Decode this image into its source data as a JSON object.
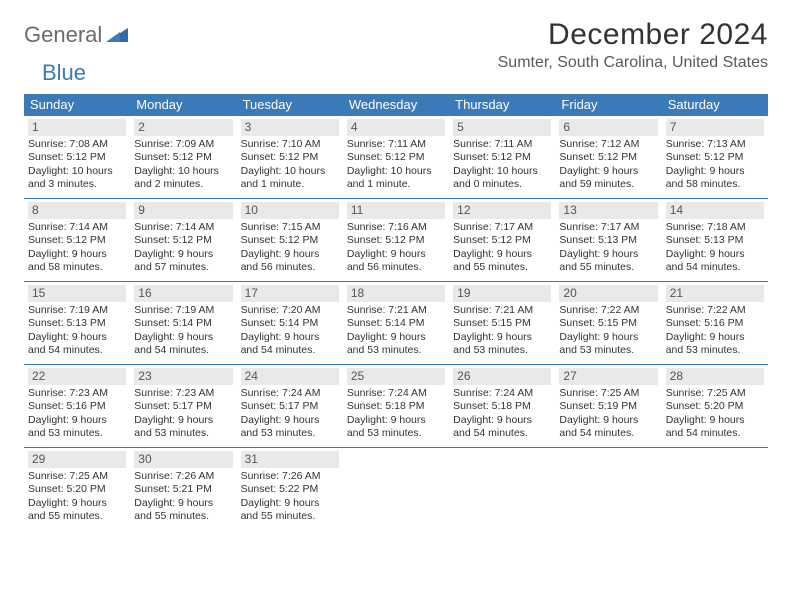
{
  "logo": {
    "text1": "General",
    "text2": "Blue"
  },
  "title": "December 2024",
  "location": "Sumter, South Carolina, United States",
  "colors": {
    "header_bg": "#3a7ab8",
    "daynum_bg": "#e9e9e9",
    "text": "#333333",
    "logo_gray": "#6b6b6b",
    "logo_blue": "#3a7ab8"
  },
  "dow": [
    "Sunday",
    "Monday",
    "Tuesday",
    "Wednesday",
    "Thursday",
    "Friday",
    "Saturday"
  ],
  "weeks": [
    [
      {
        "n": "1",
        "sr": "Sunrise: 7:08 AM",
        "ss": "Sunset: 5:12 PM",
        "d1": "Daylight: 10 hours",
        "d2": "and 3 minutes."
      },
      {
        "n": "2",
        "sr": "Sunrise: 7:09 AM",
        "ss": "Sunset: 5:12 PM",
        "d1": "Daylight: 10 hours",
        "d2": "and 2 minutes."
      },
      {
        "n": "3",
        "sr": "Sunrise: 7:10 AM",
        "ss": "Sunset: 5:12 PM",
        "d1": "Daylight: 10 hours",
        "d2": "and 1 minute."
      },
      {
        "n": "4",
        "sr": "Sunrise: 7:11 AM",
        "ss": "Sunset: 5:12 PM",
        "d1": "Daylight: 10 hours",
        "d2": "and 1 minute."
      },
      {
        "n": "5",
        "sr": "Sunrise: 7:11 AM",
        "ss": "Sunset: 5:12 PM",
        "d1": "Daylight: 10 hours",
        "d2": "and 0 minutes."
      },
      {
        "n": "6",
        "sr": "Sunrise: 7:12 AM",
        "ss": "Sunset: 5:12 PM",
        "d1": "Daylight: 9 hours",
        "d2": "and 59 minutes."
      },
      {
        "n": "7",
        "sr": "Sunrise: 7:13 AM",
        "ss": "Sunset: 5:12 PM",
        "d1": "Daylight: 9 hours",
        "d2": "and 58 minutes."
      }
    ],
    [
      {
        "n": "8",
        "sr": "Sunrise: 7:14 AM",
        "ss": "Sunset: 5:12 PM",
        "d1": "Daylight: 9 hours",
        "d2": "and 58 minutes."
      },
      {
        "n": "9",
        "sr": "Sunrise: 7:14 AM",
        "ss": "Sunset: 5:12 PM",
        "d1": "Daylight: 9 hours",
        "d2": "and 57 minutes."
      },
      {
        "n": "10",
        "sr": "Sunrise: 7:15 AM",
        "ss": "Sunset: 5:12 PM",
        "d1": "Daylight: 9 hours",
        "d2": "and 56 minutes."
      },
      {
        "n": "11",
        "sr": "Sunrise: 7:16 AM",
        "ss": "Sunset: 5:12 PM",
        "d1": "Daylight: 9 hours",
        "d2": "and 56 minutes."
      },
      {
        "n": "12",
        "sr": "Sunrise: 7:17 AM",
        "ss": "Sunset: 5:12 PM",
        "d1": "Daylight: 9 hours",
        "d2": "and 55 minutes."
      },
      {
        "n": "13",
        "sr": "Sunrise: 7:17 AM",
        "ss": "Sunset: 5:13 PM",
        "d1": "Daylight: 9 hours",
        "d2": "and 55 minutes."
      },
      {
        "n": "14",
        "sr": "Sunrise: 7:18 AM",
        "ss": "Sunset: 5:13 PM",
        "d1": "Daylight: 9 hours",
        "d2": "and 54 minutes."
      }
    ],
    [
      {
        "n": "15",
        "sr": "Sunrise: 7:19 AM",
        "ss": "Sunset: 5:13 PM",
        "d1": "Daylight: 9 hours",
        "d2": "and 54 minutes."
      },
      {
        "n": "16",
        "sr": "Sunrise: 7:19 AM",
        "ss": "Sunset: 5:14 PM",
        "d1": "Daylight: 9 hours",
        "d2": "and 54 minutes."
      },
      {
        "n": "17",
        "sr": "Sunrise: 7:20 AM",
        "ss": "Sunset: 5:14 PM",
        "d1": "Daylight: 9 hours",
        "d2": "and 54 minutes."
      },
      {
        "n": "18",
        "sr": "Sunrise: 7:21 AM",
        "ss": "Sunset: 5:14 PM",
        "d1": "Daylight: 9 hours",
        "d2": "and 53 minutes."
      },
      {
        "n": "19",
        "sr": "Sunrise: 7:21 AM",
        "ss": "Sunset: 5:15 PM",
        "d1": "Daylight: 9 hours",
        "d2": "and 53 minutes."
      },
      {
        "n": "20",
        "sr": "Sunrise: 7:22 AM",
        "ss": "Sunset: 5:15 PM",
        "d1": "Daylight: 9 hours",
        "d2": "and 53 minutes."
      },
      {
        "n": "21",
        "sr": "Sunrise: 7:22 AM",
        "ss": "Sunset: 5:16 PM",
        "d1": "Daylight: 9 hours",
        "d2": "and 53 minutes."
      }
    ],
    [
      {
        "n": "22",
        "sr": "Sunrise: 7:23 AM",
        "ss": "Sunset: 5:16 PM",
        "d1": "Daylight: 9 hours",
        "d2": "and 53 minutes."
      },
      {
        "n": "23",
        "sr": "Sunrise: 7:23 AM",
        "ss": "Sunset: 5:17 PM",
        "d1": "Daylight: 9 hours",
        "d2": "and 53 minutes."
      },
      {
        "n": "24",
        "sr": "Sunrise: 7:24 AM",
        "ss": "Sunset: 5:17 PM",
        "d1": "Daylight: 9 hours",
        "d2": "and 53 minutes."
      },
      {
        "n": "25",
        "sr": "Sunrise: 7:24 AM",
        "ss": "Sunset: 5:18 PM",
        "d1": "Daylight: 9 hours",
        "d2": "and 53 minutes."
      },
      {
        "n": "26",
        "sr": "Sunrise: 7:24 AM",
        "ss": "Sunset: 5:18 PM",
        "d1": "Daylight: 9 hours",
        "d2": "and 54 minutes."
      },
      {
        "n": "27",
        "sr": "Sunrise: 7:25 AM",
        "ss": "Sunset: 5:19 PM",
        "d1": "Daylight: 9 hours",
        "d2": "and 54 minutes."
      },
      {
        "n": "28",
        "sr": "Sunrise: 7:25 AM",
        "ss": "Sunset: 5:20 PM",
        "d1": "Daylight: 9 hours",
        "d2": "and 54 minutes."
      }
    ],
    [
      {
        "n": "29",
        "sr": "Sunrise: 7:25 AM",
        "ss": "Sunset: 5:20 PM",
        "d1": "Daylight: 9 hours",
        "d2": "and 55 minutes."
      },
      {
        "n": "30",
        "sr": "Sunrise: 7:26 AM",
        "ss": "Sunset: 5:21 PM",
        "d1": "Daylight: 9 hours",
        "d2": "and 55 minutes."
      },
      {
        "n": "31",
        "sr": "Sunrise: 7:26 AM",
        "ss": "Sunset: 5:22 PM",
        "d1": "Daylight: 9 hours",
        "d2": "and 55 minutes."
      },
      {
        "n": "",
        "sr": "",
        "ss": "",
        "d1": "",
        "d2": ""
      },
      {
        "n": "",
        "sr": "",
        "ss": "",
        "d1": "",
        "d2": ""
      },
      {
        "n": "",
        "sr": "",
        "ss": "",
        "d1": "",
        "d2": ""
      },
      {
        "n": "",
        "sr": "",
        "ss": "",
        "d1": "",
        "d2": ""
      }
    ]
  ]
}
